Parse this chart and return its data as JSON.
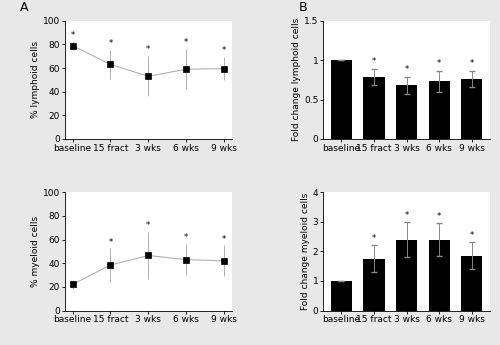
{
  "categories": [
    "baseline",
    "15 fract",
    "3 wks",
    "6 wks",
    "9 wks"
  ],
  "lymphoid_pct_mean": [
    79.0,
    63.0,
    53.0,
    59.0,
    59.5
  ],
  "lymphoid_pct_sd": [
    3.5,
    12.0,
    17.0,
    17.0,
    10.0
  ],
  "myeloid_pct_mean": [
    22.0,
    38.5,
    46.5,
    43.0,
    42.0
  ],
  "myeloid_pct_sd": [
    4.0,
    14.0,
    20.0,
    13.0,
    13.0
  ],
  "lymphoid_fc_mean": [
    1.0,
    0.79,
    0.68,
    0.73,
    0.76
  ],
  "lymphoid_fc_sem": [
    0.0,
    0.1,
    0.11,
    0.13,
    0.1
  ],
  "myeloid_fc_mean": [
    1.0,
    1.75,
    2.4,
    2.4,
    1.85
  ],
  "myeloid_fc_sem": [
    0.0,
    0.45,
    0.6,
    0.55,
    0.45
  ],
  "pct_ylim": [
    0,
    100
  ],
  "pct_yticks": [
    0,
    20,
    40,
    60,
    80,
    100
  ],
  "lfc_ylim": [
    0.0,
    1.5
  ],
  "lfc_yticks": [
    0.0,
    0.5,
    1.0,
    1.5
  ],
  "mfc_ylim": [
    0.0,
    4.0
  ],
  "mfc_yticks": [
    0.0,
    1.0,
    2.0,
    3.0,
    4.0
  ],
  "bar_color": "#000000",
  "line_color": "#b0b0b0",
  "marker_color": "#000000",
  "marker_style": "s",
  "marker_size": 4,
  "line_width": 0.8,
  "asterisk_color": "#000000",
  "label_A": "A",
  "label_B": "B",
  "ylabel_lymphoid_pct": "% lymphoid cells",
  "ylabel_myeloid_pct": "% myeloid cells",
  "ylabel_lymphoid_fc": "Fold change lymphoid cells",
  "ylabel_myeloid_fc": "Fold change myeloid cells",
  "figure_bg": "#e8e8e8",
  "panel_bg": "#ffffff",
  "spine_color": "#000000",
  "tick_color": "#000000",
  "font_size": 6.5,
  "ylabel_font_size": 6.5,
  "panel_label_font_size": 9,
  "lym_asterisk_indices": [
    0,
    1,
    2,
    3,
    4
  ],
  "mye_asterisk_indices": [
    1,
    2,
    3,
    4
  ],
  "bar_asterisk_lfc_indices": [
    1,
    2,
    3,
    4
  ],
  "bar_asterisk_mfc_indices": [
    1,
    2,
    3,
    4
  ]
}
